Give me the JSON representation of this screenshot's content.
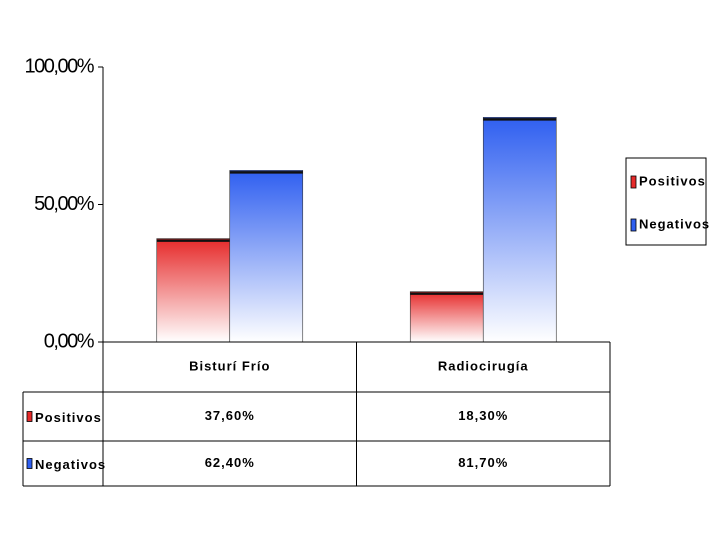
{
  "chart_data": {
    "type": "bar",
    "categories": [
      "Bisturí Frío",
      "Radiocirugía"
    ],
    "series": [
      {
        "name": "Positivos",
        "color": "#e62a2a",
        "values": [
          37.6,
          18.3
        ],
        "value_labels": [
          "37,60%",
          "18,30%"
        ]
      },
      {
        "name": "Negativos",
        "color": "#2f5ff0",
        "values": [
          62.4,
          81.7
        ],
        "value_labels": [
          "62,40%",
          "81,70%"
        ]
      }
    ],
    "ylim": [
      0,
      100
    ],
    "yticks": [
      {
        "value": 0,
        "label": "0,00%"
      },
      {
        "value": 50,
        "label": "50,00%"
      },
      {
        "value": 100,
        "label": "100,00%"
      }
    ],
    "legend": "right"
  }
}
